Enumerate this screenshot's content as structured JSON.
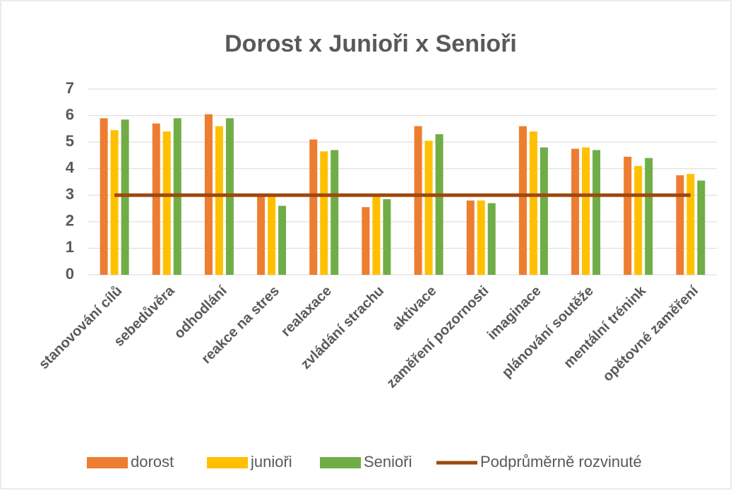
{
  "chart_data": {
    "type": "bar",
    "title": "Dorost x Junioři x  Senioři",
    "categories": [
      "stanovování cílů",
      "sebedůvěra",
      "odhodlání",
      "reakce na stres",
      "realaxace",
      "zvládání strachu",
      "aktivace",
      "zaměření pozornosti",
      "imaginace",
      "plánování soutěže",
      "mentální trénink",
      "opětovné zaměření"
    ],
    "series": [
      {
        "name": "dorost",
        "color": "#ed7d31",
        "values": [
          5.9,
          5.7,
          6.05,
          3.0,
          5.1,
          2.55,
          5.6,
          2.8,
          5.6,
          4.75,
          4.45,
          3.75
        ]
      },
      {
        "name": "junioři",
        "color": "#ffc000",
        "values": [
          5.45,
          5.4,
          5.6,
          3.0,
          4.65,
          2.95,
          5.05,
          2.8,
          5.4,
          4.8,
          4.1,
          3.8
        ]
      },
      {
        "name": "Senioři",
        "color": "#70ad47",
        "values": [
          5.85,
          5.9,
          5.9,
          2.6,
          4.7,
          2.85,
          5.3,
          2.7,
          4.8,
          4.7,
          4.4,
          3.55
        ]
      },
      {
        "name": "Podprůměrně rozvinuté",
        "color": "#9e480e",
        "type": "line",
        "values": [
          3,
          3,
          3,
          3,
          3,
          3,
          3,
          3,
          3,
          3,
          3,
          3
        ]
      }
    ],
    "ylim": [
      0,
      7
    ],
    "yticks": [
      0,
      1,
      2,
      3,
      4,
      5,
      6,
      7
    ],
    "grid": true,
    "legend": "bottom"
  }
}
